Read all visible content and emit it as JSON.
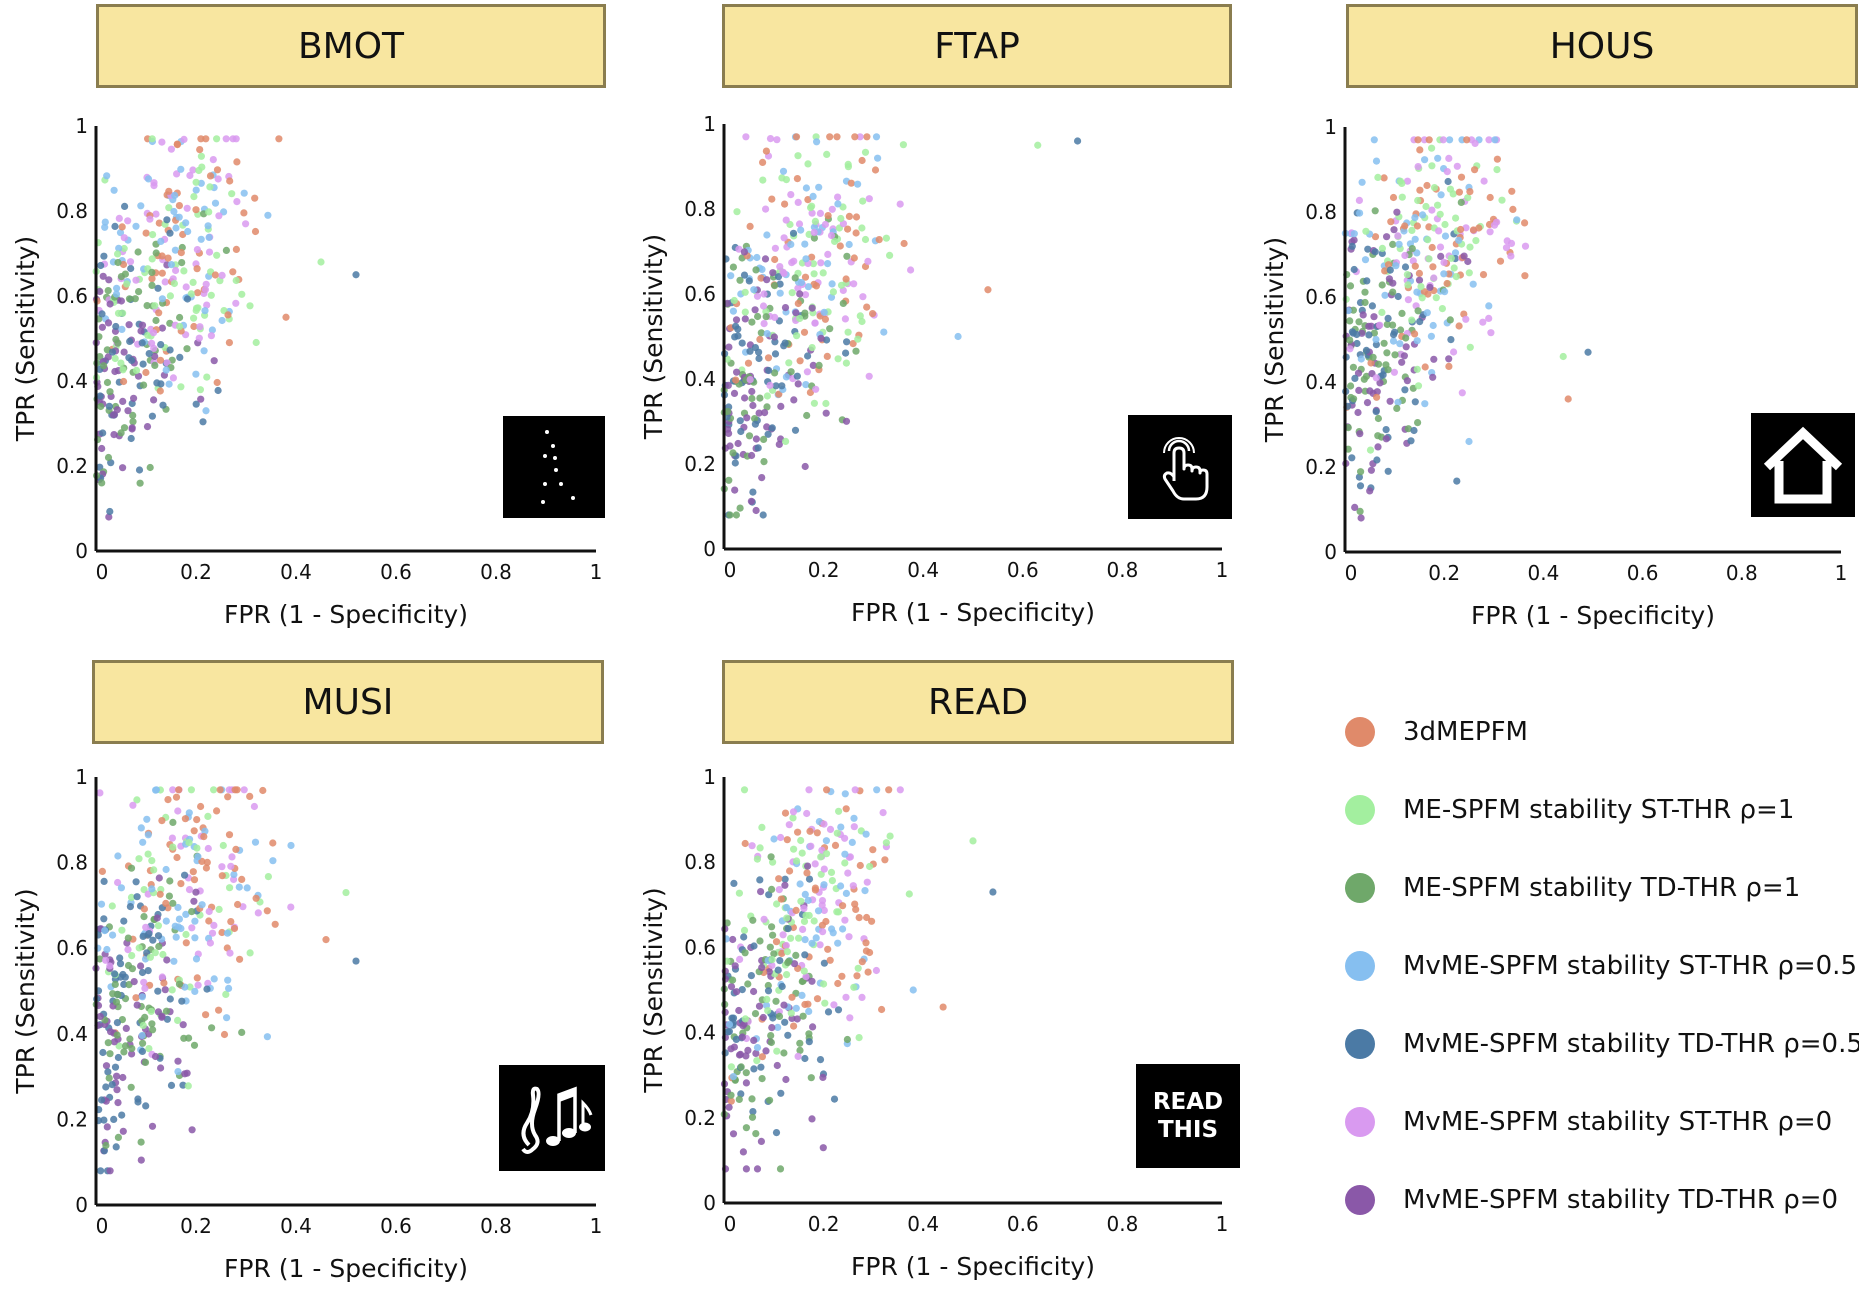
{
  "chart_data": [
    {
      "type": "scatter",
      "title": "BMOT",
      "xlabel": "FPR (1 - Specificity)",
      "ylabel": "TPR (Sensitivity)",
      "xlim": [
        0,
        1
      ],
      "ylim": [
        0,
        1
      ],
      "icon": "dance-dots-icon",
      "xticks": [
        "0",
        "0.2",
        "0.4",
        "0.6",
        "0.8",
        "1"
      ],
      "yticks": [
        "0",
        "0.2",
        "0.4",
        "0.6",
        "0.8",
        "1"
      ],
      "cloud": {
        "x_mean": 0.12,
        "y_mean": 0.62,
        "x_max": 0.52,
        "outliers": [
          [
            0.45,
            0.68
          ],
          [
            0.52,
            0.65
          ],
          [
            0.38,
            0.55
          ],
          [
            0.22,
            0.33
          ]
        ]
      }
    },
    {
      "type": "scatter",
      "title": "FTAP",
      "xlabel": "FPR (1 - Specificity)",
      "ylabel": "TPR (Sensitivity)",
      "xlim": [
        0,
        1
      ],
      "ylim": [
        0,
        1
      ],
      "icon": "finger-tap-icon",
      "xticks": [
        "0",
        "0.2",
        "0.4",
        "0.6",
        "0.8",
        "1"
      ],
      "yticks": [
        "0",
        "0.2",
        "0.4",
        "0.6",
        "0.8",
        "1"
      ],
      "cloud": {
        "x_mean": 0.13,
        "y_mean": 0.58,
        "x_max": 0.72,
        "outliers": [
          [
            0.63,
            0.95
          ],
          [
            0.71,
            0.96
          ],
          [
            0.53,
            0.61
          ],
          [
            0.47,
            0.5
          ]
        ]
      }
    },
    {
      "type": "scatter",
      "title": "HOUS",
      "xlabel": "FPR (1 - Specificity)",
      "ylabel": "TPR (Sensitivity)",
      "xlim": [
        0,
        1
      ],
      "ylim": [
        0,
        1
      ],
      "icon": "house-icon",
      "xticks": [
        "0",
        "0.2",
        "0.4",
        "0.6",
        "0.8",
        "1"
      ],
      "yticks": [
        "0",
        "0.2",
        "0.4",
        "0.6",
        "0.8",
        "1"
      ],
      "cloud": {
        "x_mean": 0.13,
        "y_mean": 0.64,
        "x_max": 0.5,
        "outliers": [
          [
            0.44,
            0.46
          ],
          [
            0.49,
            0.47
          ],
          [
            0.45,
            0.36
          ],
          [
            0.25,
            0.26
          ]
        ]
      }
    },
    {
      "type": "scatter",
      "title": "MUSI",
      "xlabel": "FPR (1 - Specificity)",
      "ylabel": "TPR (Sensitivity)",
      "xlim": [
        0,
        1
      ],
      "ylim": [
        0,
        1
      ],
      "icon": "music-notes-icon",
      "xticks": [
        "0",
        "0.2",
        "0.4",
        "0.6",
        "0.8",
        "1"
      ],
      "yticks": [
        "0",
        "0.2",
        "0.4",
        "0.6",
        "0.8",
        "1"
      ],
      "cloud": {
        "x_mean": 0.13,
        "y_mean": 0.62,
        "x_max": 0.52,
        "outliers": [
          [
            0.5,
            0.73
          ],
          [
            0.52,
            0.57
          ],
          [
            0.46,
            0.62
          ],
          [
            0.39,
            0.84
          ]
        ]
      }
    },
    {
      "type": "scatter",
      "title": "READ",
      "xlabel": "FPR (1 - Specificity)",
      "ylabel": "TPR (Sensitivity)",
      "xlim": [
        0,
        1
      ],
      "ylim": [
        0,
        1
      ],
      "icon": "read-this-icon",
      "icon_text": [
        "READ",
        "THIS"
      ],
      "xticks": [
        "0",
        "0.2",
        "0.4",
        "0.6",
        "0.8",
        "1"
      ],
      "yticks": [
        "0",
        "0.2",
        "0.4",
        "0.6",
        "0.8",
        "1"
      ],
      "cloud": {
        "x_mean": 0.13,
        "y_mean": 0.6,
        "x_max": 0.54,
        "outliers": [
          [
            0.5,
            0.85
          ],
          [
            0.54,
            0.73
          ],
          [
            0.44,
            0.46
          ],
          [
            0.38,
            0.5
          ]
        ]
      }
    }
  ],
  "legend": [
    {
      "label": "3dMEPFM",
      "color": "#e08a6a"
    },
    {
      "label": "ME-SPFM stability ST-THR ρ=1",
      "color": "#a3ef9f"
    },
    {
      "label": "ME-SPFM stability TD-THR ρ=1",
      "color": "#6fa86a"
    },
    {
      "label": "MvME-SPFM stability ST-THR ρ=0.5",
      "color": "#86bff0"
    },
    {
      "label": "MvME-SPFM stability TD-THR ρ=0.5",
      "color": "#4b7aa5"
    },
    {
      "label": "MvME-SPFM stability ST-THR ρ=0",
      "color": "#d99af0"
    },
    {
      "label": "MvME-SPFM stability TD-THR ρ=0",
      "color": "#8a58a8"
    }
  ]
}
